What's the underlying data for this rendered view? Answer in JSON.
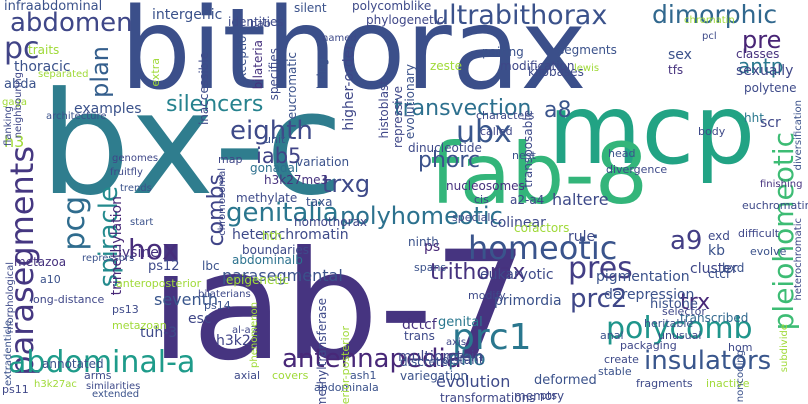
{
  "words": [
    "bithorax",
    "bx-c",
    "iab-7",
    "mcp",
    "fab-8",
    "abdomen",
    "ultrabithorax",
    "dimorphic",
    "pre",
    "pc",
    "antp",
    "thoracic",
    "plan",
    "parasegments",
    "a8",
    "silencers",
    "eighth",
    "transvection",
    "ubx",
    "iab5",
    "pcg",
    "spiracle",
    "hox",
    "combs",
    "trxg",
    "genitalia",
    "polyhomeotic",
    "pleiohomeotic",
    "phorc",
    "a9",
    "homeotic",
    "trithorax",
    "pres",
    "prc2",
    "polycomb",
    "prc1",
    "insulators",
    "trx",
    "abdominal-a",
    "antennapedia",
    "pho",
    "h3",
    "examples",
    "heterochromatin",
    "gonadal",
    "ps12",
    "esc",
    "seventh",
    "parasegmental",
    "dctcf",
    "pigmentation",
    "multiprotein",
    "genital",
    "kb",
    "rule",
    "ps",
    "derepression",
    "evolution",
    "h3k27",
    "tuh-3",
    "lysine",
    "boundaries",
    "trimethylation",
    "abdominalb",
    "epigenetic",
    "primordia",
    "cluster",
    "ctcf",
    "a2-a4",
    "haltere",
    "colinear",
    "ninth",
    "nucleosomes",
    "eukaryotic",
    "histone",
    "transcribed",
    "hth",
    "hht",
    "exd",
    "bxd",
    "scr",
    "kilobases",
    "segments",
    "repressive",
    "zeste",
    "intergenic",
    "identities",
    "silent",
    "phylogenetic",
    "polycomblike",
    "infraabdominal",
    "chromatin",
    "pcl",
    "sex",
    "tfs",
    "sexually",
    "polytene",
    "variation",
    "h3k27me3",
    "methylate",
    "taxa",
    "homothorax",
    "dinucleotide",
    "cofactors",
    "lbc",
    "transposable",
    "pairing",
    "modification",
    "classes",
    "lewis",
    "named",
    "bring",
    "histoblast",
    "bab",
    "exception",
    "bilateria",
    "specifies",
    "higher-order",
    "evolutionary",
    "inaccessible",
    "eucromatic",
    "extra",
    "traits",
    "gaga",
    "abda",
    "separated",
    "flanking",
    "architecture",
    "genomes",
    "fruitfly",
    "trends",
    "metazoa",
    "morphological",
    "a10",
    "anteroposterior",
    "long-distance",
    "ps13",
    "ps14",
    "al-a7",
    "metazoan",
    "bilaterians",
    "extradenticle",
    "h3k27ac",
    "ps11",
    "arms",
    "annotated",
    "axial",
    "abdominala",
    "transformations",
    "anterior-posterior",
    "methyltransferase",
    "variegation",
    "trans",
    "axis",
    "discrete",
    "distant",
    "ash1",
    "covers",
    "memory",
    "deformed",
    "pts",
    "fragments",
    "inactive",
    "stable",
    "create",
    "packaging",
    "anal",
    "hom",
    "noncoding",
    "subdivide",
    "unusual",
    "heritable",
    "selector",
    "modify",
    "evolve",
    "difficult",
    "heterochromatic",
    "diversification",
    "finishing",
    "body",
    "spans",
    "called",
    "characters",
    "nest",
    "cis",
    "special",
    "head",
    "divergence",
    "map",
    "unit",
    "chromosomal",
    "start",
    "euchromatin",
    "neighbouring",
    "extended",
    "similarities",
    "repressors",
    "phenomenon"
  ]
}
